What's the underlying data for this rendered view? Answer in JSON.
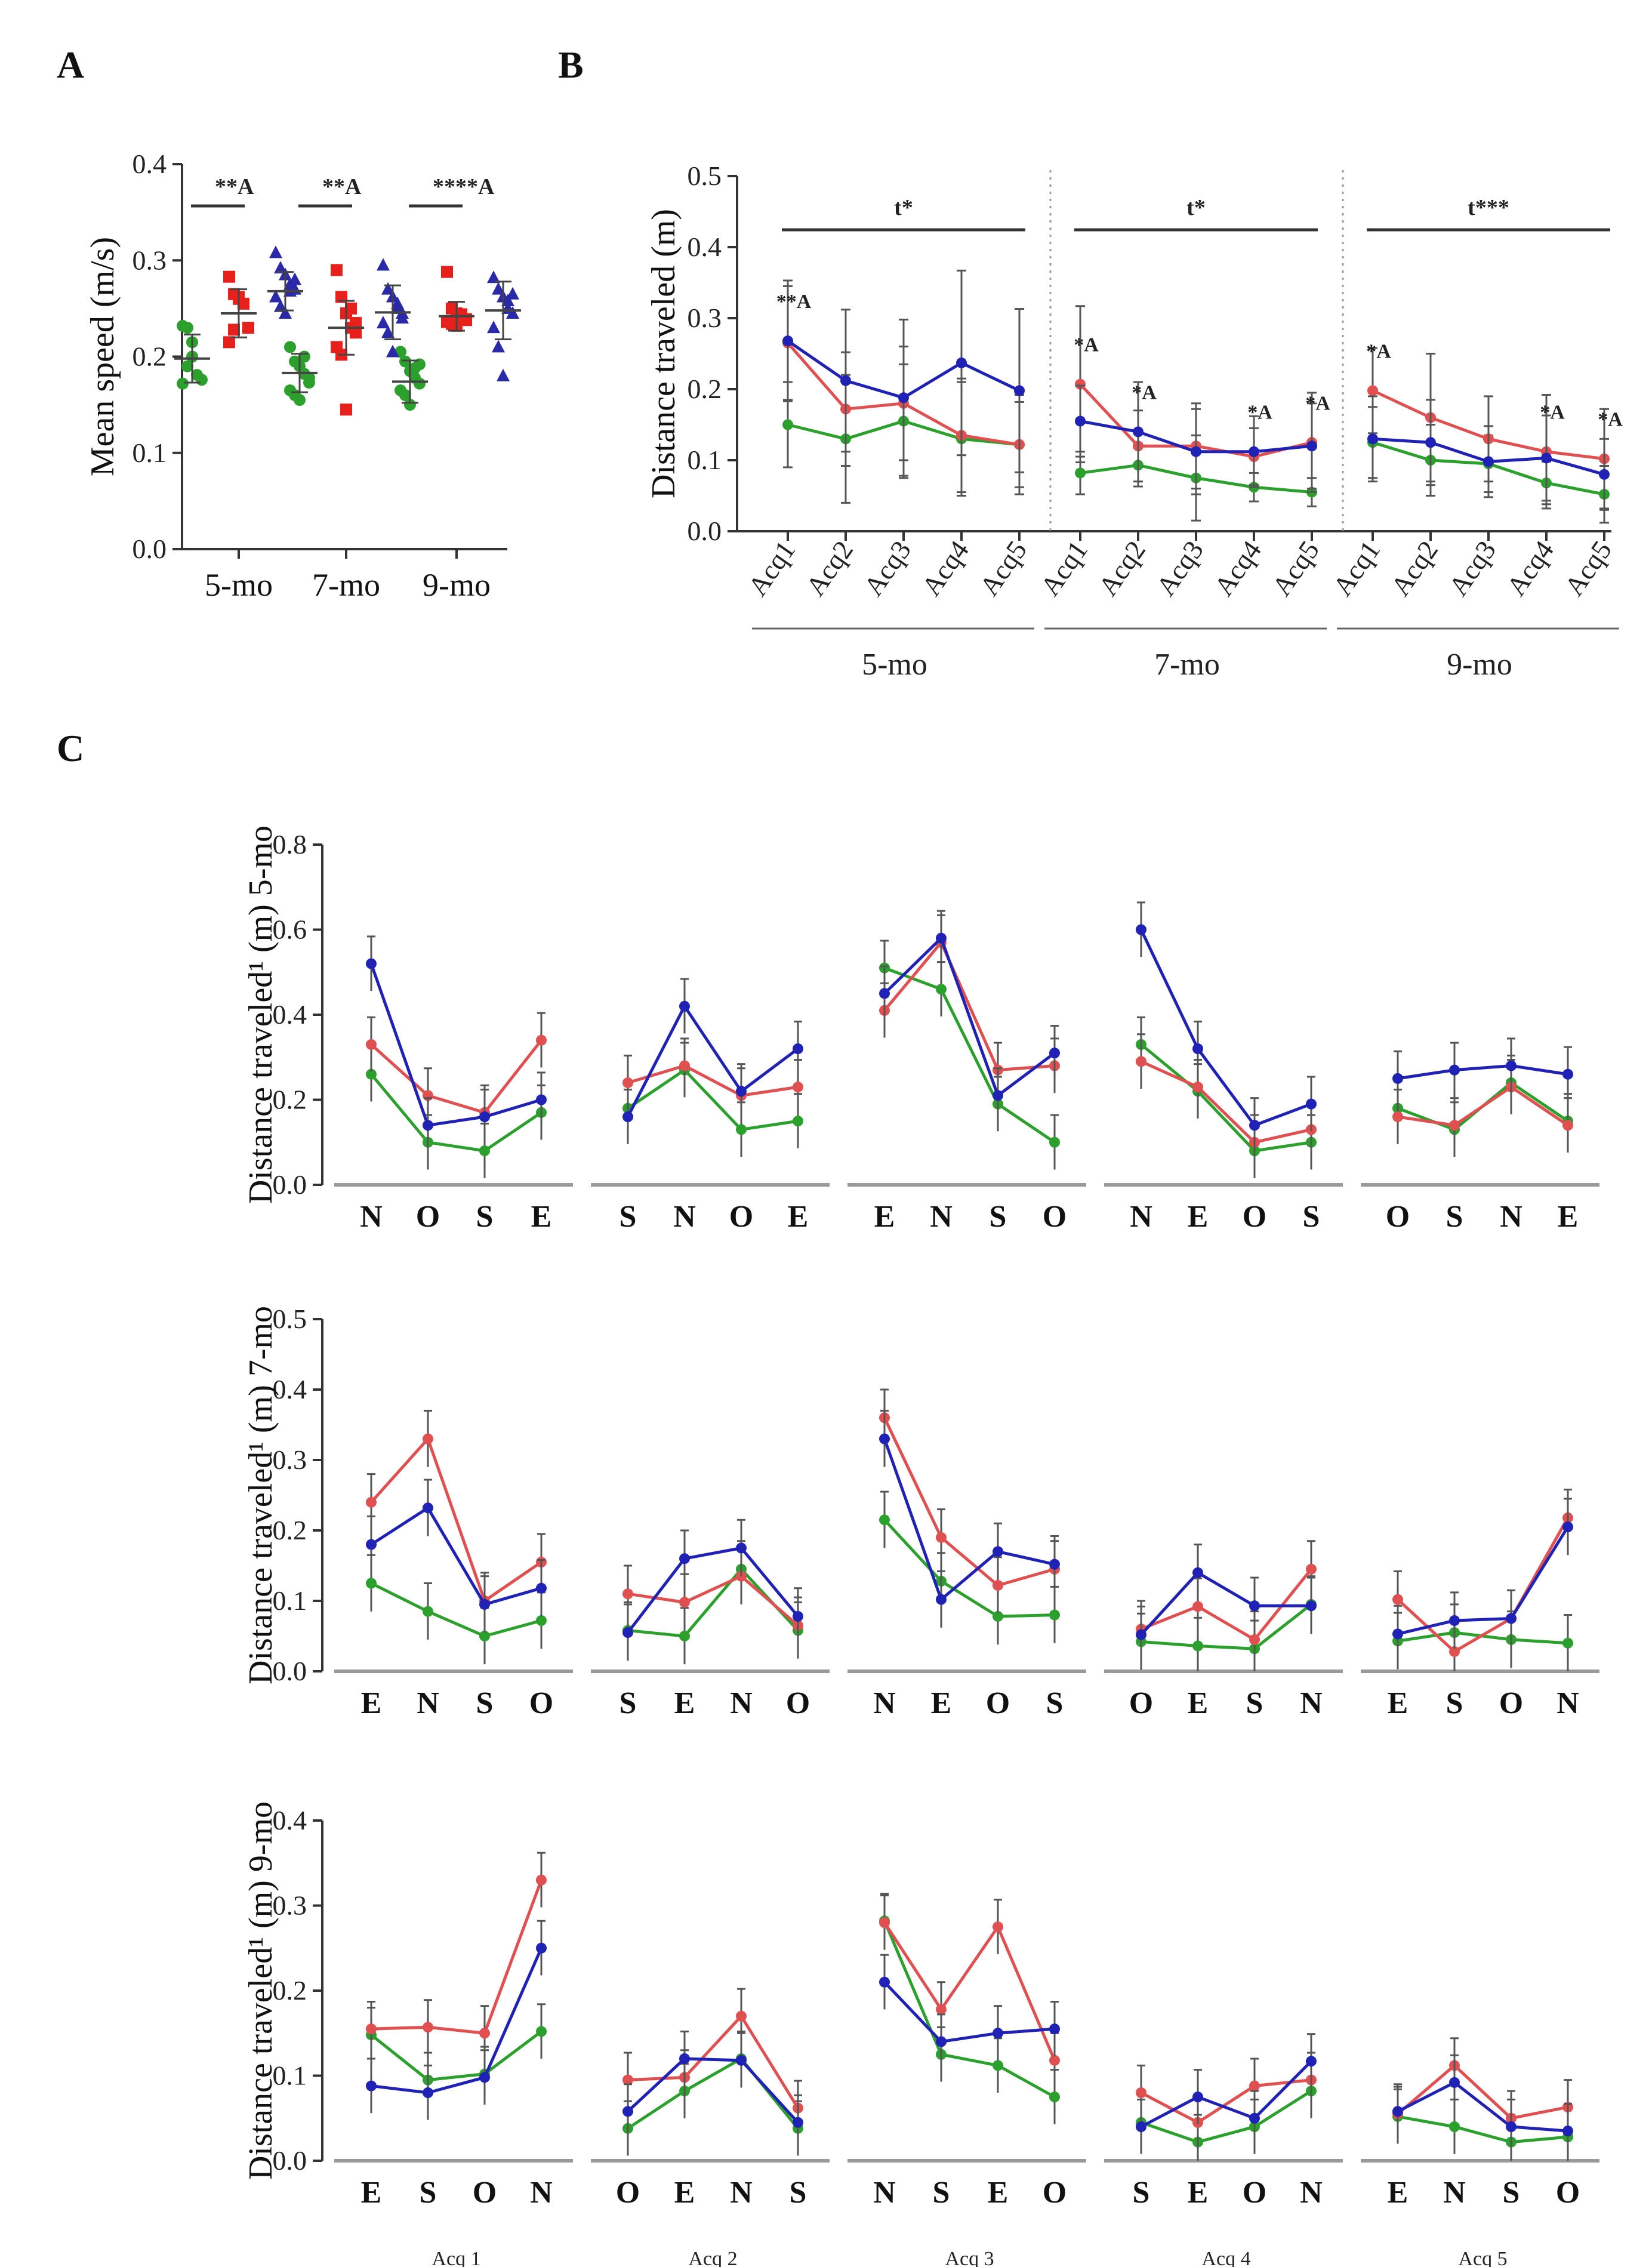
{
  "panels": {
    "A": "A",
    "B": "B",
    "C": "C"
  },
  "colors": {
    "green": "#2ca02c",
    "red": "#e05050",
    "blue": "#1f22b4",
    "red_dots": "#e8201c",
    "blue_dots": "#2a2aa8"
  },
  "chart_data": [
    {
      "id": "A",
      "type": "scatter",
      "title": "",
      "ylabel": "Mean speed (m/s)",
      "ylim": [
        0.0,
        0.4
      ],
      "yticks": [
        "0.0",
        "0.1",
        "0.2",
        "0.3",
        "0.4"
      ],
      "categories": [
        "5-mo",
        "7-mo",
        "9-mo"
      ],
      "significance": [
        "**A",
        "**A",
        "****A"
      ],
      "series": [
        {
          "name": "green",
          "marker": "circle",
          "mean": [
            0.198,
            0.183,
            0.174
          ],
          "sd": [
            0.025,
            0.02,
            0.022
          ],
          "points": [
            [
              0.232,
              0.23,
              0.2,
              0.181,
              0.176,
              0.172,
              0.19,
              0.215
            ],
            [
              0.21,
              0.195,
              0.19,
              0.182,
              0.178,
              0.165,
              0.16,
              0.155,
              0.2,
              0.173
            ],
            [
              0.205,
              0.195,
              0.185,
              0.178,
              0.172,
              0.165,
              0.16,
              0.15,
              0.188,
              0.192
            ]
          ]
        },
        {
          "name": "red",
          "marker": "square",
          "mean": [
            0.245,
            0.23,
            0.242
          ],
          "sd": [
            0.025,
            0.028,
            0.015
          ],
          "points": [
            [
              0.283,
              0.265,
              0.262,
              0.255,
              0.23,
              0.215,
              0.228,
              0.26
            ],
            [
              0.29,
              0.262,
              0.245,
              0.23,
              0.225,
              0.21,
              0.202,
              0.145,
              0.25,
              0.235
            ],
            [
              0.288,
              0.25,
              0.245,
              0.24,
              0.238,
              0.236,
              0.234,
              0.232,
              0.244,
              0.239
            ]
          ]
        },
        {
          "name": "blue",
          "marker": "triangle",
          "mean": [
            0.268,
            0.246,
            0.248
          ],
          "sd": [
            0.02,
            0.028,
            0.03
          ],
          "points": [
            [
              0.308,
              0.292,
              0.285,
              0.275,
              0.27,
              0.262,
              0.252,
              0.245,
              0.268,
              0.28
            ],
            [
              0.295,
              0.27,
              0.262,
              0.25,
              0.245,
              0.235,
              0.225,
              0.205,
              0.255,
              0.24
            ],
            [
              0.282,
              0.27,
              0.262,
              0.25,
              0.245,
              0.23,
              0.21,
              0.18,
              0.258,
              0.265
            ]
          ]
        }
      ]
    },
    {
      "id": "B",
      "type": "line",
      "ylabel": "Distance traveled (m)",
      "ylim": [
        0.0,
        0.5
      ],
      "yticks": [
        "0.0",
        "0.1",
        "0.2",
        "0.3",
        "0.4",
        "0.5"
      ],
      "categories": [
        "Acq1",
        "Acq2",
        "Acq3",
        "Acq4",
        "Acq5"
      ],
      "groups": [
        "5-mo",
        "7-mo",
        "9-mo"
      ],
      "group_significance": [
        "t*",
        "t*",
        "t***"
      ],
      "point_annotations": [
        {
          "group": 0,
          "index": 0,
          "text": "**A"
        },
        {
          "group": 1,
          "index": 0,
          "text": "*A"
        },
        {
          "group": 1,
          "index": 1,
          "text": "*A"
        },
        {
          "group": 1,
          "index": 3,
          "text": "*A"
        },
        {
          "group": 1,
          "index": 4,
          "text": "*A"
        },
        {
          "group": 2,
          "index": 0,
          "text": "*A"
        },
        {
          "group": 2,
          "index": 3,
          "text": "*A"
        },
        {
          "group": 2,
          "index": 4,
          "text": "*A"
        }
      ],
      "series": [
        {
          "name": "green",
          "values": [
            [
              0.15,
              0.13,
              0.155,
              0.13,
              0.122
            ],
            [
              0.082,
              0.093,
              0.075,
              0.062,
              0.055
            ],
            [
              0.125,
              0.1,
              0.095,
              0.068,
              0.052
            ]
          ],
          "err": [
            [
              0.06,
              0.09,
              0.08,
              0.08,
              0.07
            ],
            [
              0.03,
              0.03,
              0.06,
              0.02,
              0.02
            ],
            [
              0.05,
              0.05,
              0.04,
              0.03,
              0.04
            ]
          ]
        },
        {
          "name": "red",
          "values": [
            [
              0.265,
              0.172,
              0.18,
              0.135,
              0.122
            ],
            [
              0.207,
              0.12,
              0.12,
              0.105,
              0.125
            ],
            [
              0.198,
              0.16,
              0.13,
              0.112,
              0.102
            ]
          ],
          "err": [
            [
              0.08,
              0.08,
              0.08,
              0.08,
              0.06
            ],
            [
              0.11,
              0.05,
              0.06,
              0.04,
              0.07
            ],
            [
              0.06,
              0.09,
              0.06,
              0.08,
              0.07
            ]
          ]
        },
        {
          "name": "blue",
          "values": [
            [
              0.268,
              0.212,
              0.188,
              0.237,
              0.198
            ],
            [
              0.155,
              0.14,
              0.112,
              0.112,
              0.12
            ],
            [
              0.13,
              0.125,
              0.098,
              0.103,
              0.08
            ]
          ],
          "err": [
            [
              0.085,
              0.1,
              0.11,
              0.13,
              0.115
            ],
            [
              0.05,
              0.07,
              0.06,
              0.05,
              0.06
            ],
            [
              0.06,
              0.06,
              0.05,
              0.06,
              0.05
            ]
          ]
        }
      ]
    },
    {
      "id": "C-5mo",
      "type": "line",
      "ylabel": "Distance traveled¹ (m) 5-mo",
      "ylim": [
        0.0,
        0.8
      ],
      "yticks": [
        "0.0",
        "0.2",
        "0.4",
        "0.6",
        "0.8"
      ],
      "subplots": [
        {
          "categories": [
            "N",
            "O",
            "S",
            "E"
          ],
          "green": [
            0.26,
            0.1,
            0.08,
            0.17
          ],
          "red": [
            0.33,
            0.21,
            0.17,
            0.34
          ],
          "blue": [
            0.52,
            0.14,
            0.16,
            0.2
          ]
        },
        {
          "categories": [
            "S",
            "N",
            "O",
            "E"
          ],
          "green": [
            0.18,
            0.27,
            0.13,
            0.15
          ],
          "red": [
            0.24,
            0.28,
            0.21,
            0.23
          ],
          "blue": [
            0.16,
            0.42,
            0.22,
            0.32
          ]
        },
        {
          "categories": [
            "E",
            "N",
            "S",
            "O"
          ],
          "green": [
            0.51,
            0.46,
            0.19,
            0.1
          ],
          "red": [
            0.41,
            0.57,
            0.27,
            0.28
          ],
          "blue": [
            0.45,
            0.58,
            0.21,
            0.31
          ]
        },
        {
          "categories": [
            "N",
            "E",
            "O",
            "S"
          ],
          "green": [
            0.33,
            0.22,
            0.08,
            0.1
          ],
          "red": [
            0.29,
            0.23,
            0.1,
            0.13
          ],
          "blue": [
            0.6,
            0.32,
            0.14,
            0.19
          ]
        },
        {
          "categories": [
            "O",
            "S",
            "N",
            "E"
          ],
          "green": [
            0.18,
            0.13,
            0.24,
            0.15
          ],
          "red": [
            0.16,
            0.14,
            0.23,
            0.14
          ],
          "blue": [
            0.25,
            0.27,
            0.28,
            0.26
          ]
        }
      ]
    },
    {
      "id": "C-7mo",
      "type": "line",
      "ylabel": "Distance traveled¹ (m) 7-mo",
      "ylim": [
        0.0,
        0.5
      ],
      "yticks": [
        "0.0",
        "0.1",
        "0.2",
        "0.3",
        "0.4",
        "0.5"
      ],
      "subplots": [
        {
          "categories": [
            "E",
            "N",
            "S",
            "O"
          ],
          "green": [
            0.125,
            0.085,
            0.05,
            0.072
          ],
          "red": [
            0.24,
            0.33,
            0.1,
            0.155
          ],
          "blue": [
            0.18,
            0.232,
            0.095,
            0.118
          ]
        },
        {
          "categories": [
            "S",
            "E",
            "N",
            "O"
          ],
          "green": [
            0.058,
            0.05,
            0.145,
            0.058
          ],
          "red": [
            0.11,
            0.098,
            0.135,
            0.065
          ],
          "blue": [
            0.055,
            0.16,
            0.175,
            0.078
          ]
        },
        {
          "categories": [
            "N",
            "E",
            "O",
            "S"
          ],
          "green": [
            0.215,
            0.128,
            0.078,
            0.08
          ],
          "red": [
            0.36,
            0.19,
            0.122,
            0.145
          ],
          "blue": [
            0.33,
            0.102,
            0.17,
            0.152
          ]
        },
        {
          "categories": [
            "O",
            "E",
            "S",
            "N"
          ],
          "green": [
            0.042,
            0.036,
            0.032,
            0.095
          ],
          "red": [
            0.06,
            0.092,
            0.045,
            0.145
          ],
          "blue": [
            0.052,
            0.14,
            0.093,
            0.093
          ]
        },
        {
          "categories": [
            "E",
            "S",
            "O",
            "N"
          ],
          "green": [
            0.043,
            0.055,
            0.045,
            0.04
          ],
          "red": [
            0.102,
            0.028,
            0.075,
            0.218
          ],
          "blue": [
            0.053,
            0.072,
            0.075,
            0.205
          ]
        }
      ]
    },
    {
      "id": "C-9mo",
      "type": "line",
      "ylabel": "Distance traveled¹ (m) 9-mo",
      "ylim": [
        0.0,
        0.4
      ],
      "yticks": [
        "0.0",
        "0.1",
        "0.2",
        "0.3",
        "0.4"
      ],
      "xlabels": [
        "Acq 1",
        "Acq 2",
        "Acq 3",
        "Acq 4",
        "Acq 5"
      ],
      "subplots": [
        {
          "categories": [
            "E",
            "S",
            "O",
            "N"
          ],
          "green": [
            0.148,
            0.095,
            0.102,
            0.152
          ],
          "red": [
            0.155,
            0.157,
            0.15,
            0.33
          ],
          "blue": [
            0.088,
            0.08,
            0.098,
            0.25
          ]
        },
        {
          "categories": [
            "O",
            "E",
            "N",
            "S"
          ],
          "green": [
            0.038,
            0.082,
            0.12,
            0.038
          ],
          "red": [
            0.095,
            0.098,
            0.17,
            0.062
          ],
          "blue": [
            0.058,
            0.12,
            0.118,
            0.045
          ]
        },
        {
          "categories": [
            "N",
            "S",
            "E",
            "O"
          ],
          "green": [
            0.282,
            0.125,
            0.112,
            0.075
          ],
          "red": [
            0.28,
            0.178,
            0.275,
            0.118
          ],
          "blue": [
            0.21,
            0.14,
            0.15,
            0.155
          ]
        },
        {
          "categories": [
            "S",
            "E",
            "O",
            "N"
          ],
          "green": [
            0.045,
            0.022,
            0.04,
            0.082
          ],
          "red": [
            0.08,
            0.045,
            0.088,
            0.095
          ],
          "blue": [
            0.04,
            0.075,
            0.05,
            0.117
          ]
        },
        {
          "categories": [
            "E",
            "N",
            "S",
            "O"
          ],
          "green": [
            0.052,
            0.04,
            0.022,
            0.028
          ],
          "red": [
            0.055,
            0.112,
            0.05,
            0.063
          ],
          "blue": [
            0.058,
            0.092,
            0.04,
            0.035
          ]
        }
      ]
    }
  ]
}
